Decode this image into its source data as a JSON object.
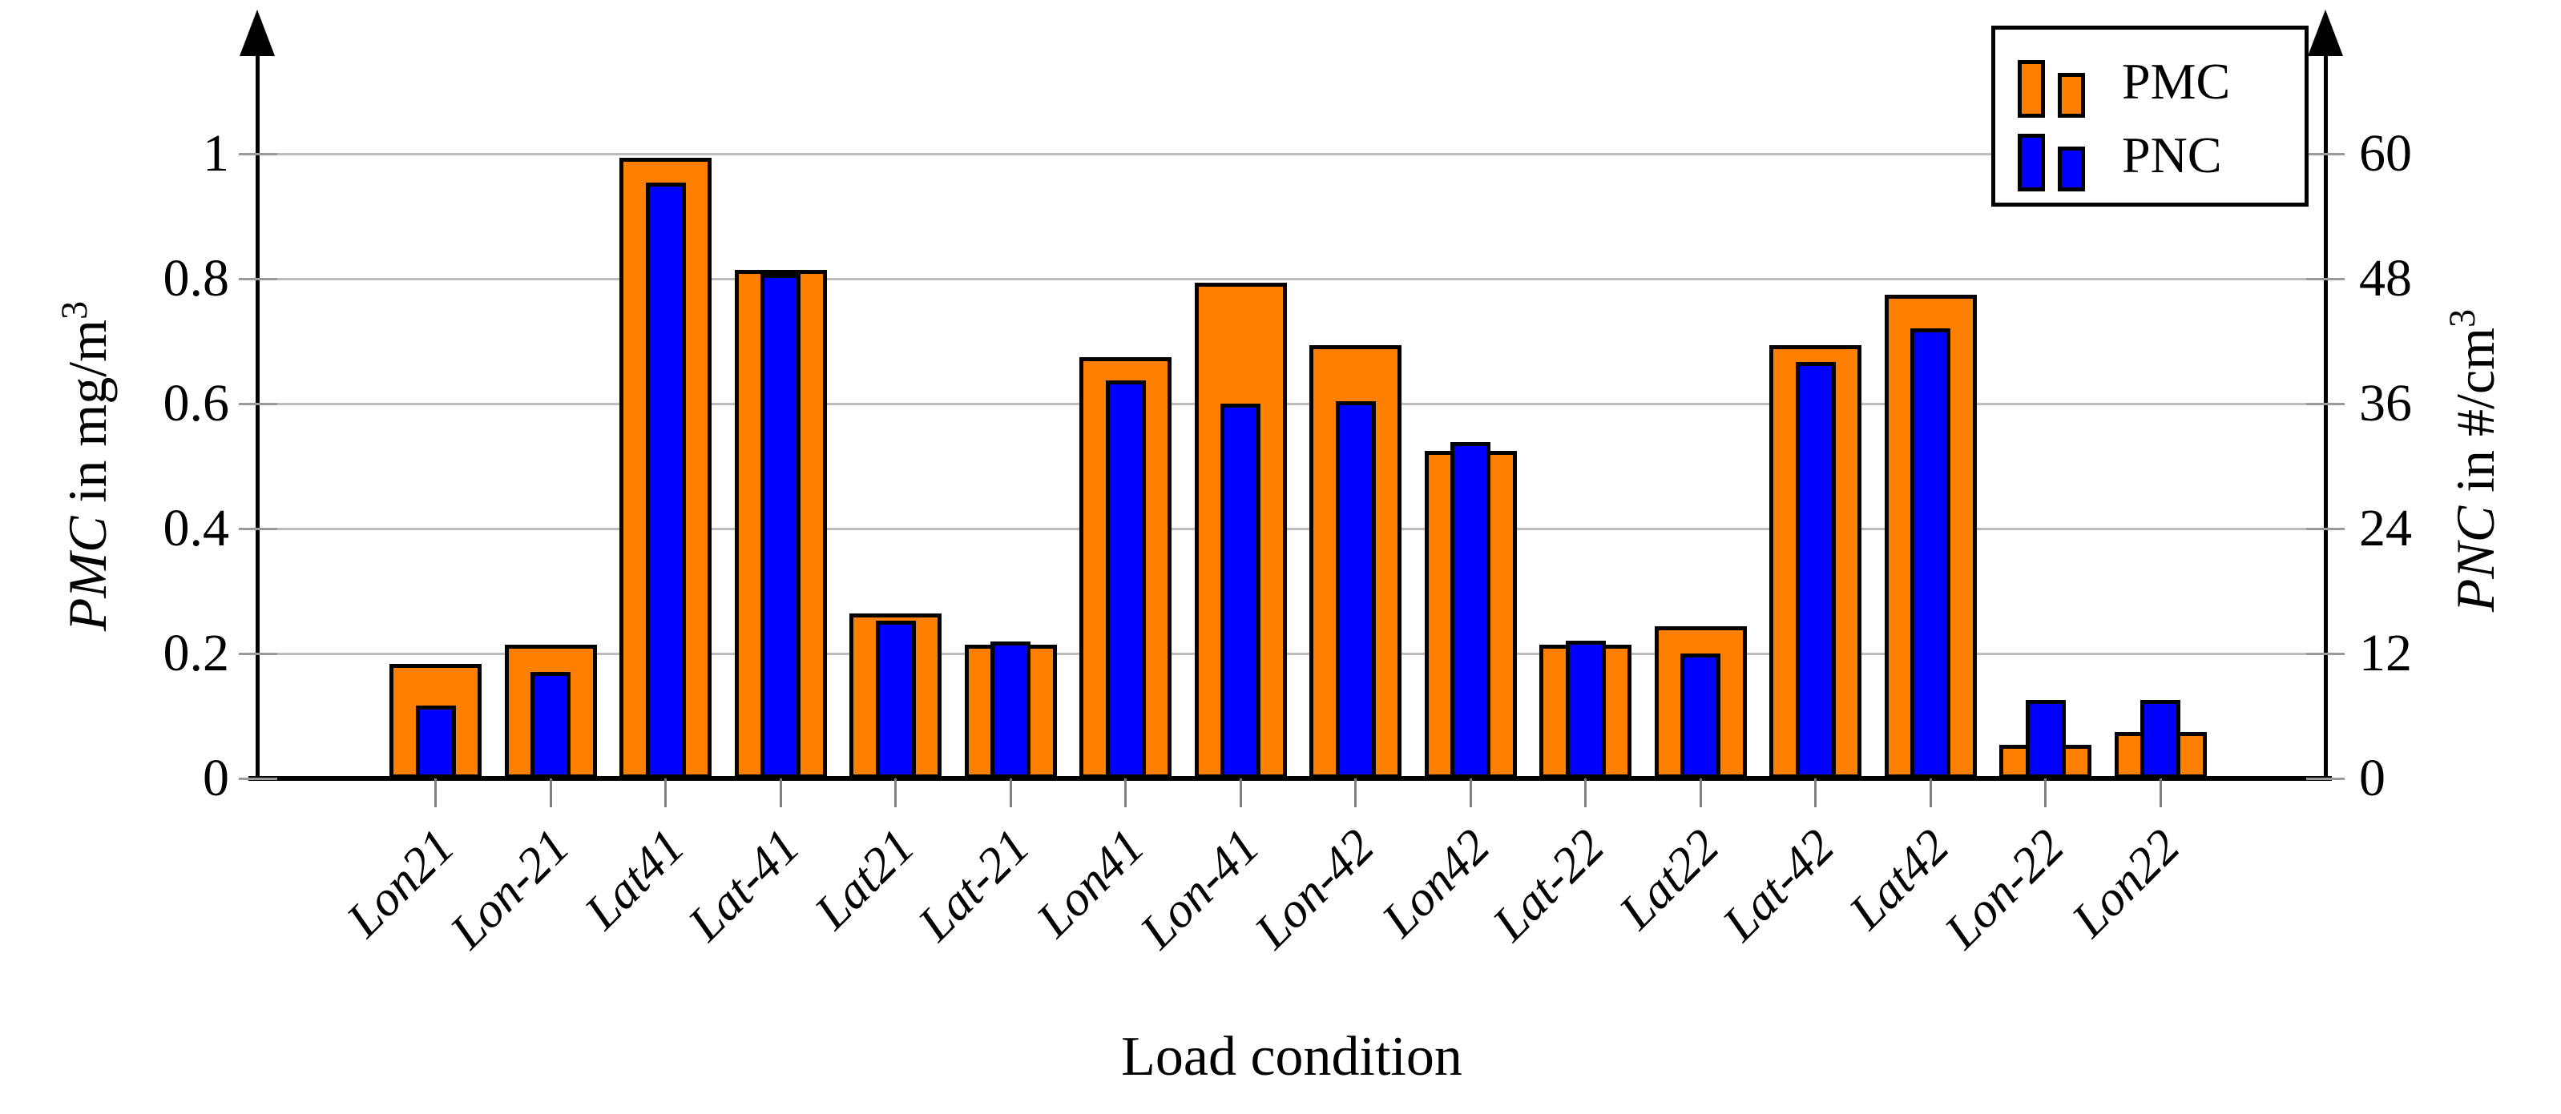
{
  "chart_data": {
    "type": "bar",
    "title": "",
    "xlabel": "Load condition",
    "ylabel_left": "PMC in mg/m³",
    "ylabel_right": "PNC in #/cm³",
    "categories": [
      "Lon21",
      "Lon-21",
      "Lat41",
      "Lat-41",
      "Lat21",
      "Lat-21",
      "Lon41",
      "Lon-41",
      "Lon-42",
      "Lon42",
      "Lat-22",
      "Lat22",
      "Lat-42",
      "Lat42",
      "Lon-22",
      "Lon22"
    ],
    "series": [
      {
        "name": "PMC",
        "axis": "left",
        "unit": "mg/m³",
        "color": "#ff8000",
        "values": [
          0.18,
          0.21,
          0.99,
          0.81,
          0.26,
          0.21,
          0.67,
          0.79,
          0.69,
          0.52,
          0.21,
          0.24,
          0.69,
          0.77,
          0.05,
          0.07
        ]
      },
      {
        "name": "PNC",
        "axis": "right",
        "unit": "#/cm³",
        "color": "#0000ff",
        "values": [
          6.8,
          10.0,
          57.0,
          48.2,
          14.9,
          12.9,
          38.0,
          35.8,
          36.0,
          32.1,
          13.0,
          11.8,
          39.8,
          43.0,
          7.3,
          7.3
        ]
      }
    ],
    "ylim_left": [
      0,
      1
    ],
    "ylim_right": [
      0,
      60
    ],
    "yticks_left": [
      "0",
      "0.2",
      "0.4",
      "0.6",
      "0.8",
      "1"
    ],
    "yticks_right": [
      "0",
      "12",
      "24",
      "36",
      "48",
      "60"
    ],
    "grid": "horizontal",
    "legend_position": "top-right"
  },
  "labels": {
    "xlabel": "Load condition",
    "ylabel_left_var": "PMC",
    "ylabel_left_rest": " in mg/m",
    "ylabel_left_sup": "3",
    "ylabel_right_var": "PNC",
    "ylabel_right_rest": " in #/cm",
    "ylabel_right_sup": "3",
    "legend": [
      "PMC",
      "PNC"
    ]
  },
  "colors": {
    "pmc_bar": "#ff8000",
    "pnc_bar": "#0000ff",
    "bar_outline": "#000000",
    "gridline": "#bcbcbc",
    "axis": "#000000",
    "background": "#ffffff"
  }
}
